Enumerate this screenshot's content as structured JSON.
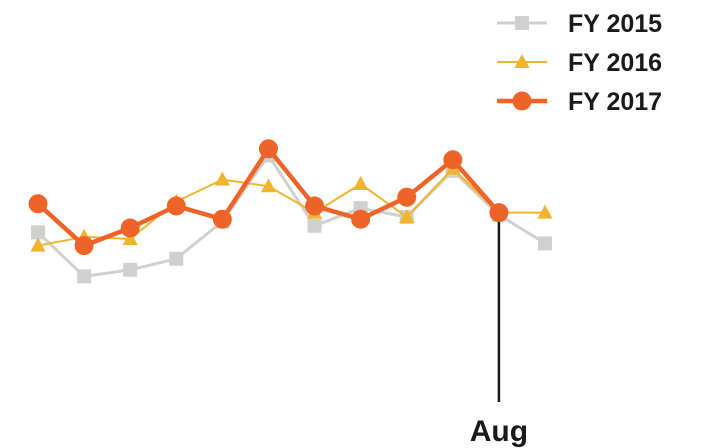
{
  "chart_data": {
    "type": "line",
    "title": "",
    "xlabel": "",
    "ylabel": "",
    "x_count": 12,
    "ylim": [
      0,
      100
    ],
    "grid": false,
    "legend_position": "top-right",
    "series": [
      {
        "name": "FY 2015",
        "color": "#d0d0ce",
        "marker": "square",
        "values": [
          58,
          38,
          41,
          46,
          63,
          93,
          61,
          69,
          65,
          86,
          66,
          53
        ]
      },
      {
        "name": "FY 2016",
        "color": "#f1b42f",
        "marker": "triangle",
        "values": [
          52,
          56,
          55,
          72,
          82,
          79,
          67,
          80,
          65,
          87,
          67,
          67
        ]
      },
      {
        "name": "FY 2017",
        "color": "#ee6428",
        "marker": "circle",
        "values": [
          71,
          52,
          60,
          70,
          64,
          96,
          70,
          64,
          74,
          91,
          67,
          null
        ]
      }
    ],
    "annotation": {
      "label": "Aug",
      "index": 10
    }
  }
}
